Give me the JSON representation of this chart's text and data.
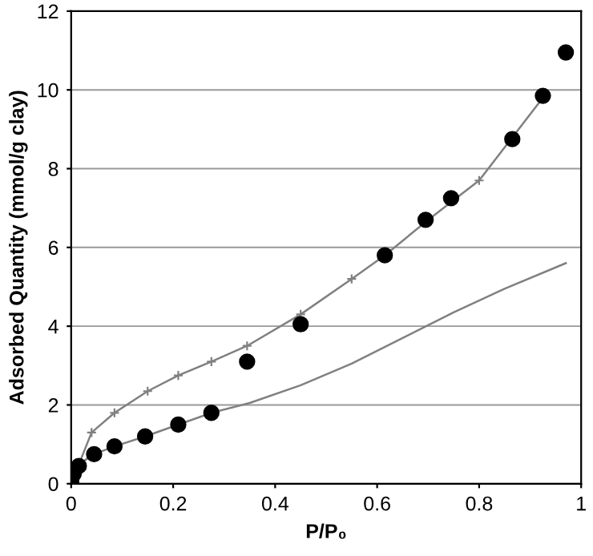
{
  "chart_data": {
    "type": "scatter",
    "xlabel": "P/P₀",
    "ylabel": "Adsorbed Quantity (mmol/g clay)",
    "xlim": [
      0,
      1
    ],
    "ylim": [
      0,
      12
    ],
    "xticks": [
      0,
      0.2,
      0.4,
      0.6,
      0.8,
      1
    ],
    "yticks": [
      0,
      2,
      4,
      6,
      8,
      10,
      12
    ],
    "grid": "y",
    "legend": false,
    "series": [
      {
        "color": "#000000",
        "marker": "circle",
        "x": [
          0.0,
          0.005,
          0.015,
          0.045,
          0.085,
          0.145,
          0.21,
          0.275,
          0.345,
          0.45,
          0.615,
          0.695,
          0.745,
          0.865,
          0.925,
          0.97
        ],
        "values": [
          0.05,
          0.25,
          0.45,
          0.75,
          0.95,
          1.2,
          1.5,
          1.8,
          3.1,
          4.05,
          5.8,
          6.7,
          7.25,
          8.75,
          9.85,
          10.95
        ]
      },
      {
        "type": "line",
        "color": "#808080",
        "marker": "cross",
        "line_style": "solid",
        "x": [
          0,
          0.04,
          0.085,
          0.15,
          0.21,
          0.275,
          0.345,
          0.45,
          0.55,
          0.615,
          0.7,
          0.8,
          0.925
        ],
        "values": [
          0,
          1.3,
          1.8,
          2.35,
          2.75,
          3.1,
          3.5,
          4.3,
          5.2,
          5.8,
          6.7,
          7.7,
          9.8
        ]
      },
      {
        "type": "line",
        "color": "#808080",
        "marker": "none",
        "line_style": "solid",
        "x": [
          0,
          0.01,
          0.045,
          0.085,
          0.145,
          0.21,
          0.275,
          0.35,
          0.45,
          0.55,
          0.65,
          0.75,
          0.85,
          0.97
        ],
        "values": [
          0,
          0.45,
          0.75,
          0.95,
          1.2,
          1.5,
          1.8,
          2.05,
          2.5,
          3.05,
          3.7,
          4.35,
          4.95,
          5.6
        ]
      }
    ]
  }
}
